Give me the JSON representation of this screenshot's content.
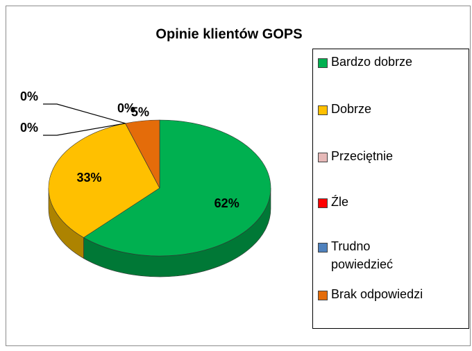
{
  "chart_data": {
    "type": "pie3d",
    "title": "Opinie klientów GOPS",
    "categories": [
      "Bardzo dobrze",
      "Dobrze",
      "Przeciętnie",
      "Źle",
      "Trudno powiedzieć",
      "Brak odpowiedzi"
    ],
    "values": [
      62,
      33,
      0,
      0,
      0,
      5
    ],
    "value_labels": [
      "62%",
      "33%",
      "0%",
      "0%",
      "0%",
      "5%"
    ],
    "colors": [
      "#00b050",
      "#ffc000",
      "#e6b9b8",
      "#ff0000",
      "#4f81bd",
      "#e46c0a"
    ]
  }
}
